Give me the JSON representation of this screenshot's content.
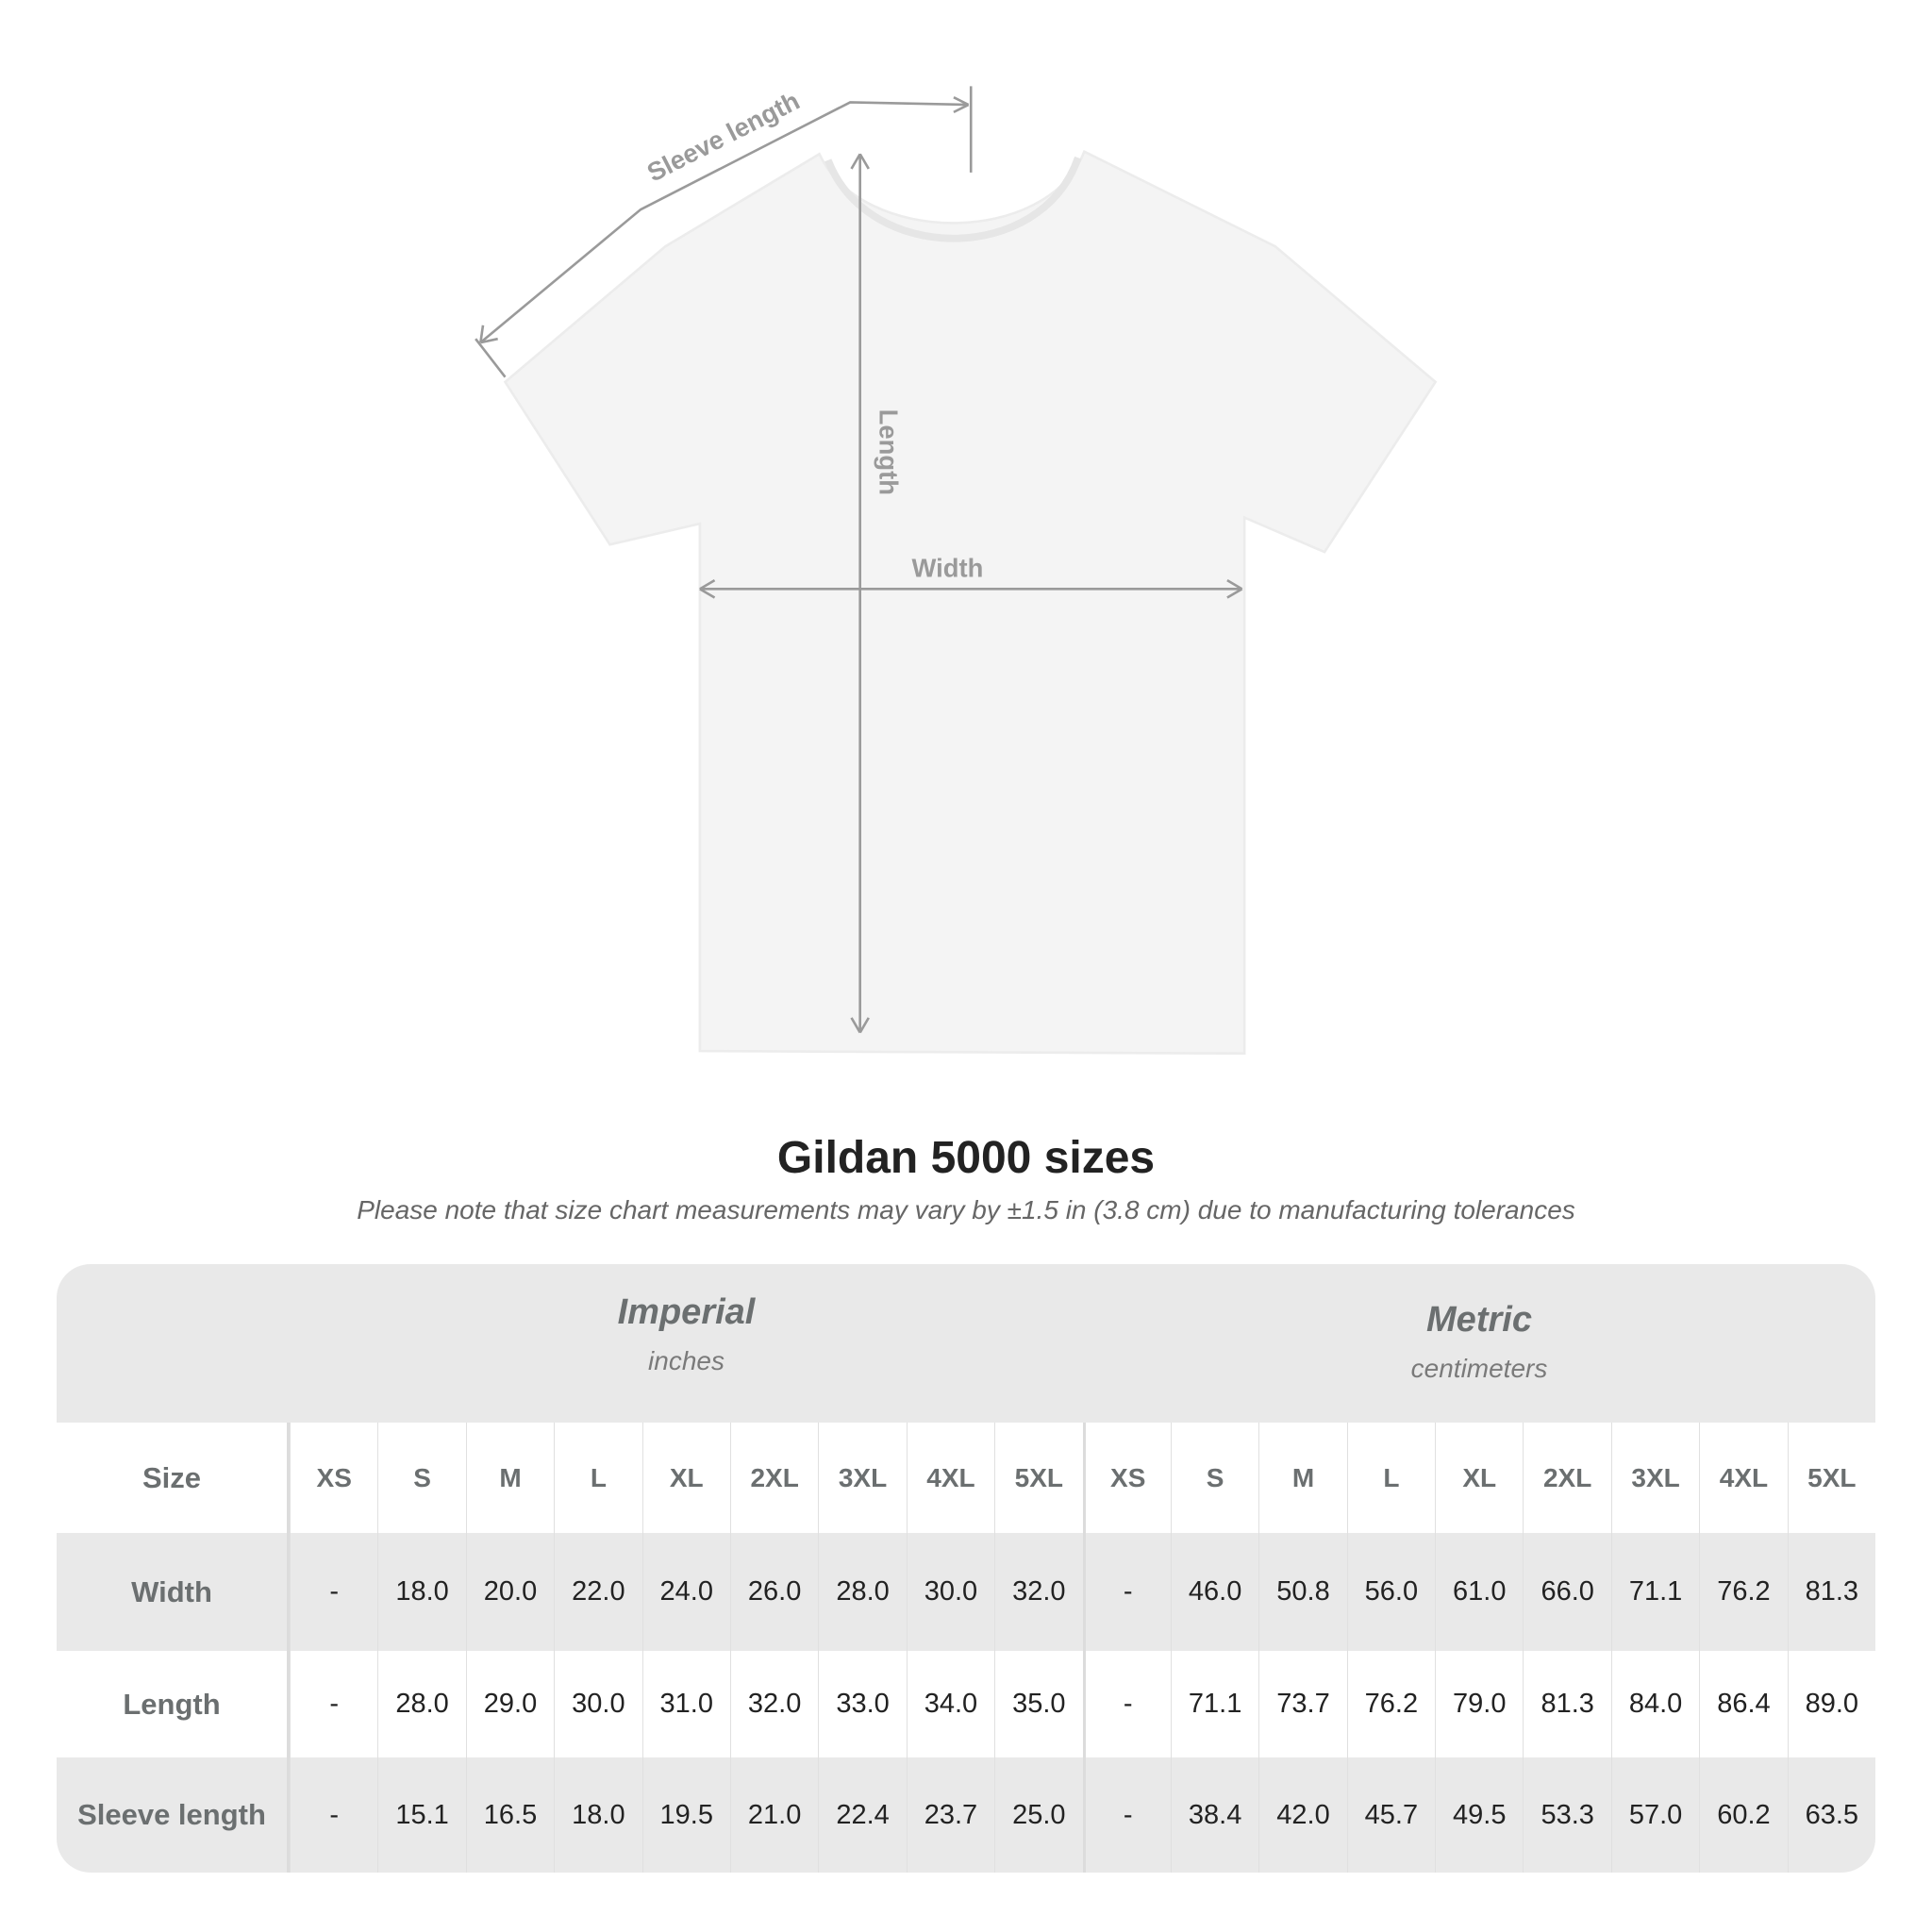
{
  "diagram": {
    "labels": {
      "sleeve_length": "Sleeve length",
      "length": "Length",
      "width": "Width"
    },
    "colors": {
      "shirt": "#f4f4f4",
      "arrows": "#9a9a9a"
    }
  },
  "title": "Gildan 5000 sizes",
  "subtitle": "Please note that size chart measurements may vary by ±1.5 in (3.8 cm) due to manufacturing tolerances",
  "table": {
    "imperial": {
      "name": "Imperial",
      "unit": "inches"
    },
    "metric": {
      "name": "Metric",
      "unit": "centimeters"
    },
    "size_label": "Size",
    "sizes": [
      "XS",
      "S",
      "M",
      "L",
      "XL",
      "2XL",
      "3XL",
      "4XL",
      "5XL"
    ],
    "rows": [
      {
        "label": "Width",
        "imperial": [
          "-",
          "18.0",
          "20.0",
          "22.0",
          "24.0",
          "26.0",
          "28.0",
          "30.0",
          "32.0"
        ],
        "metric": [
          "-",
          "46.0",
          "50.8",
          "56.0",
          "61.0",
          "66.0",
          "71.1",
          "76.2",
          "81.3"
        ]
      },
      {
        "label": "Length",
        "imperial": [
          "-",
          "28.0",
          "29.0",
          "30.0",
          "31.0",
          "32.0",
          "33.0",
          "34.0",
          "35.0"
        ],
        "metric": [
          "-",
          "71.1",
          "73.7",
          "76.2",
          "79.0",
          "81.3",
          "84.0",
          "86.4",
          "89.0"
        ]
      },
      {
        "label": "Sleeve length",
        "imperial": [
          "-",
          "15.1",
          "16.5",
          "18.0",
          "19.5",
          "21.0",
          "22.4",
          "23.7",
          "25.0"
        ],
        "metric": [
          "-",
          "38.4",
          "42.0",
          "45.7",
          "49.5",
          "53.3",
          "57.0",
          "60.2",
          "63.5"
        ]
      }
    ]
  }
}
